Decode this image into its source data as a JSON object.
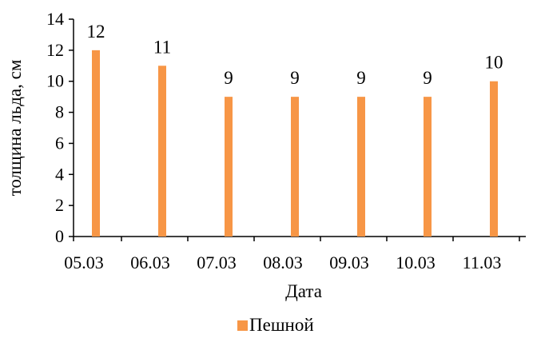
{
  "chart_data": {
    "type": "bar",
    "categories": [
      "05.03",
      "06.03",
      "07.03",
      "08.03",
      "09.03",
      "10.03",
      "11.03"
    ],
    "series": [
      {
        "name": "Пешной",
        "values": [
          12,
          11,
          9,
          9,
          9,
          9,
          10
        ],
        "color": "#F79646"
      }
    ],
    "title": "",
    "xlabel": "Дата",
    "ylabel": "толщина льда, см",
    "ylim": [
      0,
      14
    ],
    "yticks": [
      0,
      2,
      4,
      6,
      8,
      10,
      12,
      14
    ],
    "grid": false,
    "data_labels": true,
    "legend": {
      "position": "bottom"
    }
  }
}
